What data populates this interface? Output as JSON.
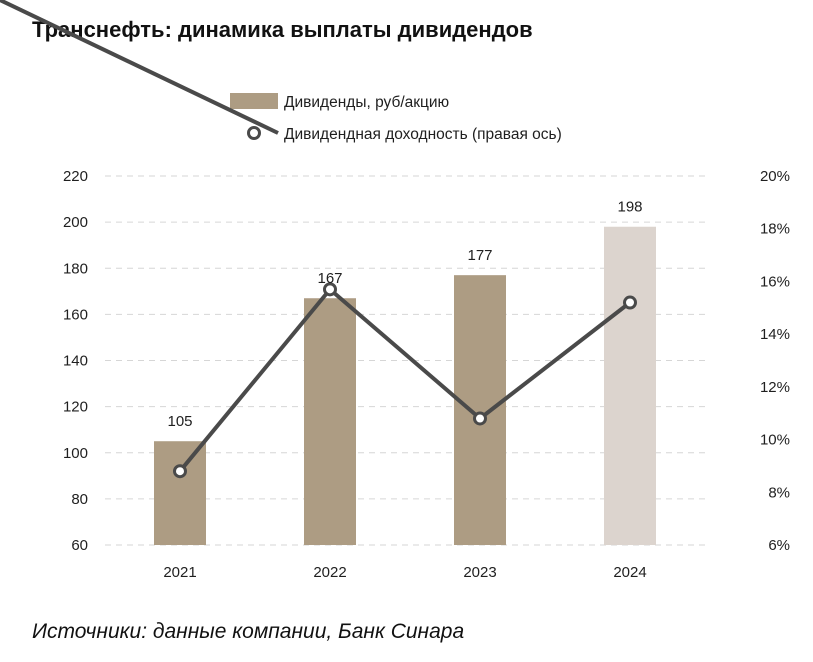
{
  "title": "Транснефть: динамика выплаты дивидендов",
  "source": "Источники: данные компании, Банк Синара",
  "colors": {
    "bar_actual": "#ad9c83",
    "bar_forecast": "#dcd4ce",
    "line": "#4a4a4a",
    "grid": "#d6d6d6"
  },
  "chart_data": {
    "type": "bar",
    "categories": [
      "2021",
      "2022",
      "2023",
      "2024"
    ],
    "series": [
      {
        "name": "Дивиденды, руб/акцию",
        "kind": "bar",
        "axis": "left",
        "values": [
          105,
          167,
          177,
          198
        ],
        "forecast": [
          false,
          false,
          false,
          true
        ]
      },
      {
        "name": "Дивидендная доходность (правая ось)",
        "kind": "line",
        "axis": "right",
        "values": [
          8.8,
          15.7,
          10.8,
          15.2
        ]
      }
    ],
    "data_labels": [
      "105",
      "167",
      "177",
      "198"
    ],
    "y_left": {
      "min": 60,
      "max": 220,
      "ticks": [
        "60",
        "80",
        "100",
        "120",
        "140",
        "160",
        "180",
        "200",
        "220"
      ]
    },
    "y_right": {
      "min": 6,
      "max": 20,
      "ticks": [
        "6%",
        "8%",
        "10%",
        "12%",
        "14%",
        "16%",
        "18%",
        "20%"
      ]
    },
    "legend": [
      "Дивиденды, руб/акцию",
      "Дивидендная доходность (правая ось)"
    ],
    "grid": true,
    "legend_position": "top-center"
  }
}
